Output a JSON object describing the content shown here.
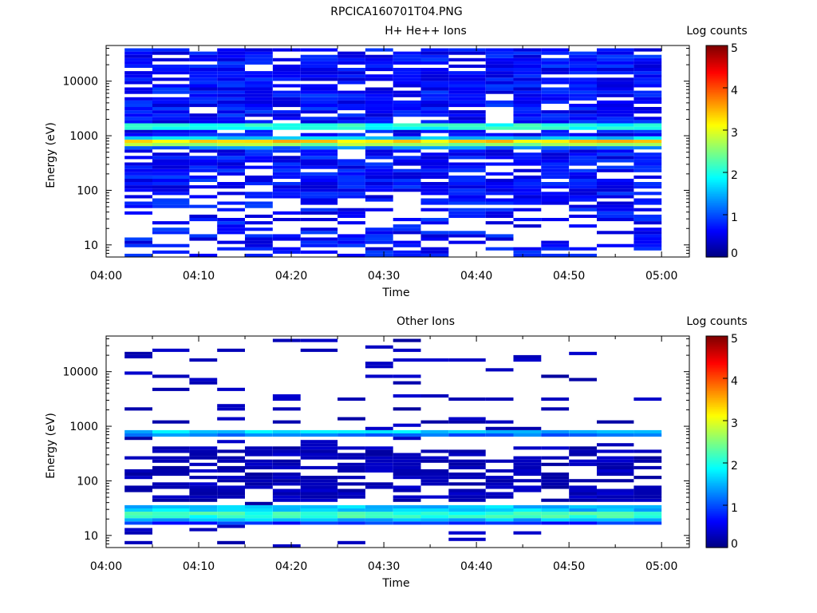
{
  "figure_title": "RPCICA160701T04.PNG",
  "chart_data": [
    {
      "type": "heatmap",
      "title": "H+ He++ Ions",
      "xlabel": "Time",
      "ylabel": "Energy (eV)",
      "yscale": "log",
      "xlim": [
        "04:00",
        "05:03"
      ],
      "ylim": [
        6,
        45000
      ],
      "x_ticks": [
        "04:00",
        "04:10",
        "04:20",
        "04:30",
        "04:40",
        "04:50",
        "05:00"
      ],
      "y_ticks": [
        "10",
        "100",
        "1000",
        "10000"
      ],
      "colorbar": {
        "label": "Log counts",
        "range": [
          0,
          5
        ],
        "ticks": [
          "0",
          "1",
          "2",
          "3",
          "4",
          "5"
        ]
      },
      "data_extent": {
        "time_start": "04:02",
        "time_end": "05:00",
        "energy_min": 6,
        "energy_max": 40000
      },
      "time_bins": [
        "04:02",
        "04:05",
        "04:09",
        "04:12",
        "04:15",
        "04:18",
        "04:21",
        "04:25",
        "04:28",
        "04:31",
        "04:34",
        "04:37",
        "04:41",
        "04:44",
        "04:47",
        "04:50",
        "04:53",
        "04:57"
      ],
      "bands": [
        {
          "e_lo": 1300,
          "e_hi": 1700,
          "log_counts": 2.0
        },
        {
          "e_lo": 800,
          "e_hi": 1000,
          "log_counts": 1.6
        },
        {
          "e_lo": 700,
          "e_hi": 800,
          "log_counts": 3.3
        },
        {
          "e_lo": 620,
          "e_hi": 700,
          "log_counts": 2.6
        },
        {
          "e_lo": 560,
          "e_hi": 620,
          "log_counts": 1.2
        }
      ],
      "background_level": 0.4,
      "series": []
    },
    {
      "type": "heatmap",
      "title": "Other Ions",
      "xlabel": "Time",
      "ylabel": "Energy (eV)",
      "yscale": "log",
      "xlim": [
        "04:00",
        "05:03"
      ],
      "ylim": [
        6,
        45000
      ],
      "x_ticks": [
        "04:00",
        "04:10",
        "04:20",
        "04:30",
        "04:40",
        "04:50",
        "05:00"
      ],
      "y_ticks": [
        "10",
        "100",
        "1000",
        "10000"
      ],
      "colorbar": {
        "label": "Log counts",
        "range": [
          0,
          5
        ],
        "ticks": [
          "0",
          "1",
          "2",
          "3",
          "4",
          "5"
        ]
      },
      "data_extent": {
        "time_start": "04:02",
        "time_end": "05:00",
        "energy_min": 6,
        "energy_max": 40000
      },
      "time_bins": [
        "04:02",
        "04:05",
        "04:09",
        "04:12",
        "04:15",
        "04:18",
        "04:21",
        "04:25",
        "04:28",
        "04:31",
        "04:34",
        "04:37",
        "04:41",
        "04:44",
        "04:47",
        "04:50",
        "04:53",
        "04:57"
      ],
      "bands": [
        {
          "e_lo": 720,
          "e_hi": 850,
          "log_counts": 1.6
        },
        {
          "e_lo": 620,
          "e_hi": 720,
          "log_counts": 1.2
        },
        {
          "e_lo": 28,
          "e_hi": 34,
          "log_counts": 1.6
        },
        {
          "e_lo": 22,
          "e_hi": 28,
          "log_counts": 2.1
        },
        {
          "e_lo": 18,
          "e_hi": 22,
          "log_counts": 1.5
        },
        {
          "e_lo": 15,
          "e_hi": 18,
          "log_counts": 0.8
        }
      ],
      "background_level": 0.15,
      "series": []
    }
  ],
  "colors": {
    "colormap": [
      "#00007f",
      "#0000ff",
      "#007fff",
      "#00ffff",
      "#7fff7f",
      "#ffff00",
      "#ff7f00",
      "#ff0000",
      "#7f0000"
    ]
  }
}
